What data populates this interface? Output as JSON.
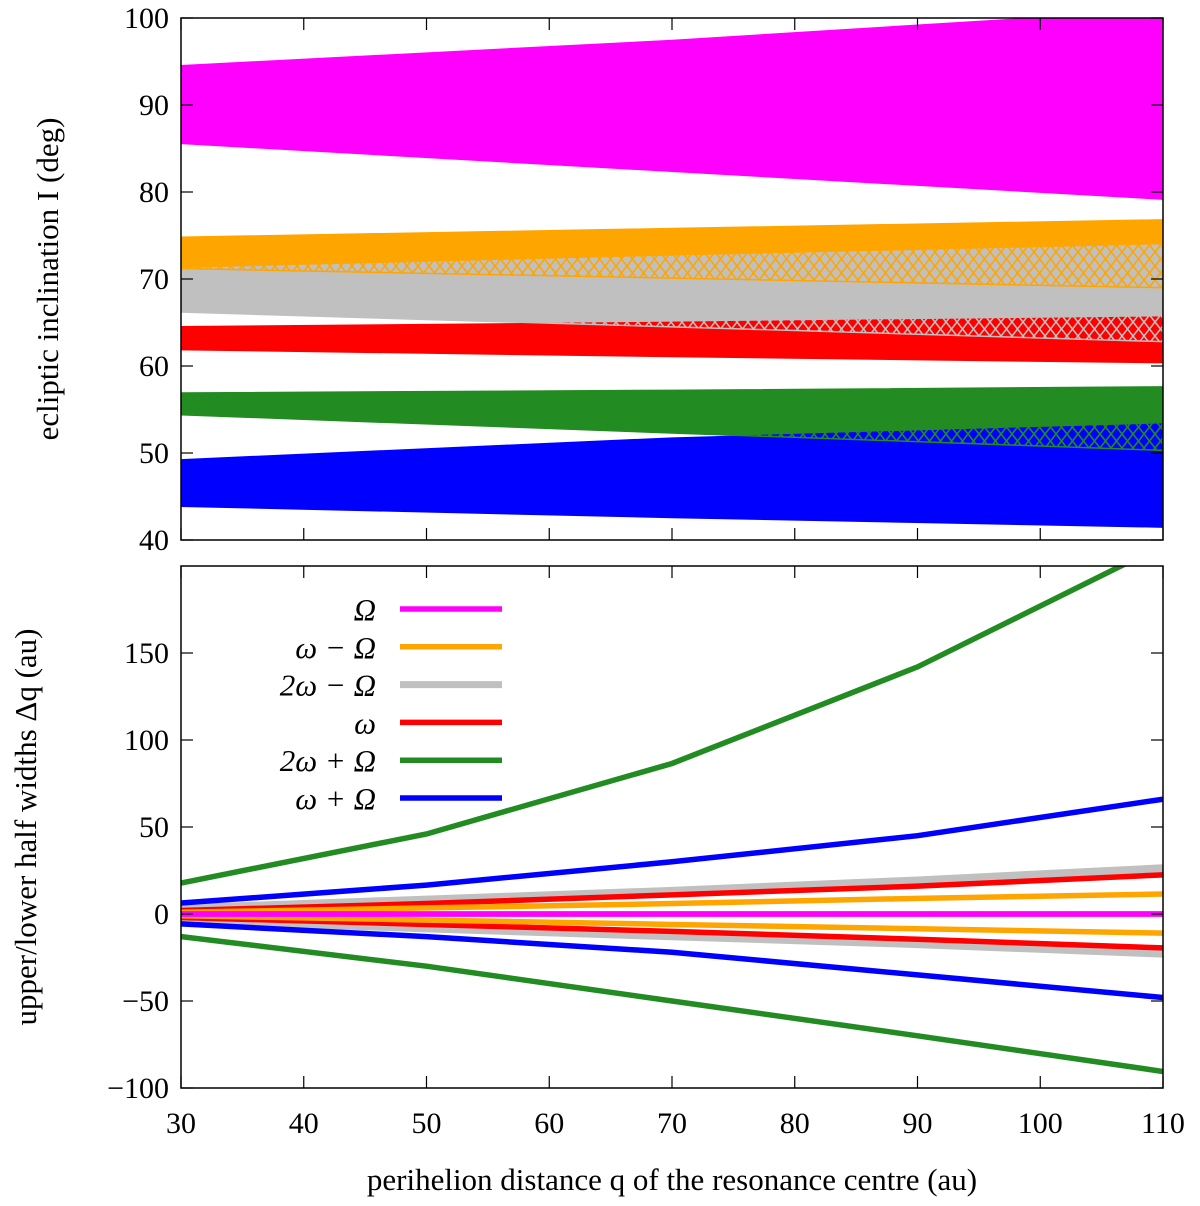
{
  "chart_data": [
    {
      "type": "area",
      "panel": "top",
      "ylabel": "ecliptic inclination I (deg)",
      "xlim": [
        30,
        110
      ],
      "ylim": [
        40,
        100
      ],
      "yticks": [
        40,
        50,
        60,
        70,
        80,
        90,
        100
      ],
      "xticks": [
        30,
        40,
        50,
        60,
        70,
        80,
        90,
        100,
        110
      ],
      "grid": false,
      "q": [
        30,
        70,
        110
      ],
      "bands": [
        {
          "name": "Ω",
          "color": "#ff00ff",
          "upper": [
            94.6,
            97.5,
            101.0
          ],
          "lower": [
            85.5,
            82.3,
            79.1
          ]
        },
        {
          "name": "ω − Ω",
          "color": "#ffa500",
          "upper": [
            74.8,
            75.8,
            76.8
          ],
          "lower": [
            71.2,
            70.1,
            69.0
          ]
        },
        {
          "name": "2ω − Ω",
          "color": "#c0c0c0",
          "upper": [
            71.2,
            72.6,
            73.9
          ],
          "lower": [
            66.2,
            64.5,
            62.8
          ]
        },
        {
          "name": "ω",
          "color": "#ff0000",
          "upper": [
            64.6,
            65.1,
            65.7
          ],
          "lower": [
            61.8,
            61.0,
            60.3
          ]
        },
        {
          "name": "2ω + Ω",
          "color": "#228b22",
          "upper": [
            56.9,
            57.2,
            57.6
          ],
          "lower": [
            54.4,
            52.3,
            50.3
          ]
        },
        {
          "name": "ω + Ω",
          "color": "#0000ff",
          "upper": [
            49.3,
            51.8,
            53.4
          ],
          "lower": [
            43.8,
            42.5,
            41.4
          ]
        }
      ]
    },
    {
      "type": "line",
      "panel": "bottom",
      "xlabel": "perihelion distance q of the resonance centre (au)",
      "ylabel": "upper/lower half widths Δq (au)",
      "xlim": [
        30,
        110
      ],
      "ylim": [
        -100,
        200
      ],
      "yticks": [
        -100,
        -50,
        0,
        50,
        100,
        150
      ],
      "ytick_labels": [
        "−100",
        "−50",
        "0",
        "50",
        "100",
        "150"
      ],
      "xticks": [
        30,
        40,
        50,
        60,
        70,
        80,
        90,
        100,
        110
      ],
      "grid": false,
      "legend_placement": "top-left",
      "q": [
        30,
        50,
        70,
        90,
        110
      ],
      "series": [
        {
          "name": "Ω",
          "color": "#ff00ff",
          "upper": [
            0,
            0,
            0,
            0,
            0
          ],
          "lower": [
            0,
            0,
            0,
            0,
            0
          ]
        },
        {
          "name": "ω − Ω",
          "color": "#ffa500",
          "upper": [
            1,
            3.5,
            6,
            9,
            11.5
          ],
          "lower": [
            -1,
            -3.5,
            -6,
            -8.5,
            -11
          ]
        },
        {
          "name": "2ω − Ω",
          "color": "#c0c0c0",
          "upper": [
            3,
            8,
            13,
            19,
            26
          ],
          "lower": [
            -3,
            -8,
            -12.5,
            -17,
            -22.5
          ]
        },
        {
          "name": "ω",
          "color": "#ff0000",
          "upper": [
            2,
            6,
            11,
            16,
            22.5
          ],
          "lower": [
            -2,
            -6,
            -10,
            -14.5,
            -19.5
          ]
        },
        {
          "name": "2ω + Ω",
          "color": "#228b22",
          "upper": [
            17.8,
            46,
            86.5,
            142,
            212
          ],
          "lower": [
            -13,
            -30,
            -50,
            -70,
            -90.5
          ]
        },
        {
          "name": "ω + Ω",
          "color": "#0000ff",
          "upper": [
            6.3,
            16.6,
            30,
            45,
            66
          ],
          "lower": [
            -5.7,
            -13,
            -22,
            -35,
            -48
          ]
        }
      ]
    }
  ]
}
